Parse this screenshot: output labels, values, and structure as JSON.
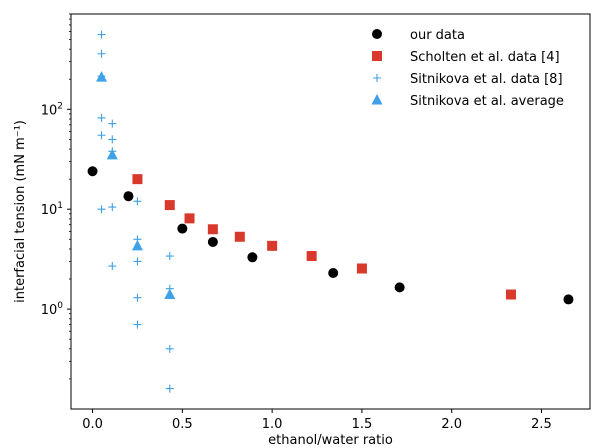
{
  "chart_data": {
    "type": "scatter",
    "xlabel": "ethanol/water ratio",
    "ylabel": "interfacial tension (mN m⁻¹)",
    "xlim": [
      -0.12,
      2.77
    ],
    "ylim": [
      0.1,
      900
    ],
    "yscale": "log",
    "x_ticks": [
      0.0,
      0.5,
      1.0,
      1.5,
      2.0,
      2.5
    ],
    "x_tick_labels": [
      "0.0",
      "0.5",
      "1.0",
      "1.5",
      "2.0",
      "2.5"
    ],
    "y_ticks": [
      1,
      10,
      100
    ],
    "y_tick_labels": [
      {
        "base": "10",
        "exp": "0"
      },
      {
        "base": "10",
        "exp": "1"
      },
      {
        "base": "10",
        "exp": "2"
      }
    ],
    "grid": false,
    "legend_position": "top-right",
    "series": [
      {
        "name": "our data",
        "marker": "circle",
        "color": "#000000",
        "points": [
          [
            0.0,
            24
          ],
          [
            0.2,
            13.5
          ],
          [
            0.5,
            6.4
          ],
          [
            0.67,
            4.7
          ],
          [
            0.89,
            3.3
          ],
          [
            1.34,
            2.3
          ],
          [
            1.71,
            1.65
          ],
          [
            2.65,
            1.25
          ]
        ]
      },
      {
        "name": "Scholten et al. data [4]",
        "marker": "square",
        "color": "#d9392b",
        "points": [
          [
            0.25,
            20
          ],
          [
            0.43,
            11
          ],
          [
            0.54,
            8.1
          ],
          [
            0.67,
            6.3
          ],
          [
            0.82,
            5.3
          ],
          [
            1.0,
            4.3
          ],
          [
            1.22,
            3.4
          ],
          [
            1.5,
            2.55
          ],
          [
            2.33,
            1.4
          ]
        ]
      },
      {
        "name": "Sitnikova et al. data [8]",
        "marker": "plus",
        "color": "#3fa1e8",
        "points": [
          [
            0.05,
            560
          ],
          [
            0.05,
            360
          ],
          [
            0.05,
            215
          ],
          [
            0.05,
            82
          ],
          [
            0.05,
            55
          ],
          [
            0.05,
            10
          ],
          [
            0.11,
            72
          ],
          [
            0.11,
            50
          ],
          [
            0.11,
            38
          ],
          [
            0.11,
            10.5
          ],
          [
            0.11,
            2.7
          ],
          [
            0.25,
            12
          ],
          [
            0.25,
            5
          ],
          [
            0.25,
            3
          ],
          [
            0.25,
            1.3
          ],
          [
            0.25,
            0.7
          ],
          [
            0.43,
            3.4
          ],
          [
            0.43,
            1.6
          ],
          [
            0.43,
            0.4
          ],
          [
            0.43,
            0.16
          ]
        ]
      },
      {
        "name": "Sitnikova et al. average",
        "marker": "triangle",
        "color": "#3fa1e8",
        "points": [
          [
            0.05,
            210
          ],
          [
            0.11,
            35
          ],
          [
            0.25,
            4.3
          ],
          [
            0.43,
            1.4
          ]
        ]
      }
    ]
  }
}
